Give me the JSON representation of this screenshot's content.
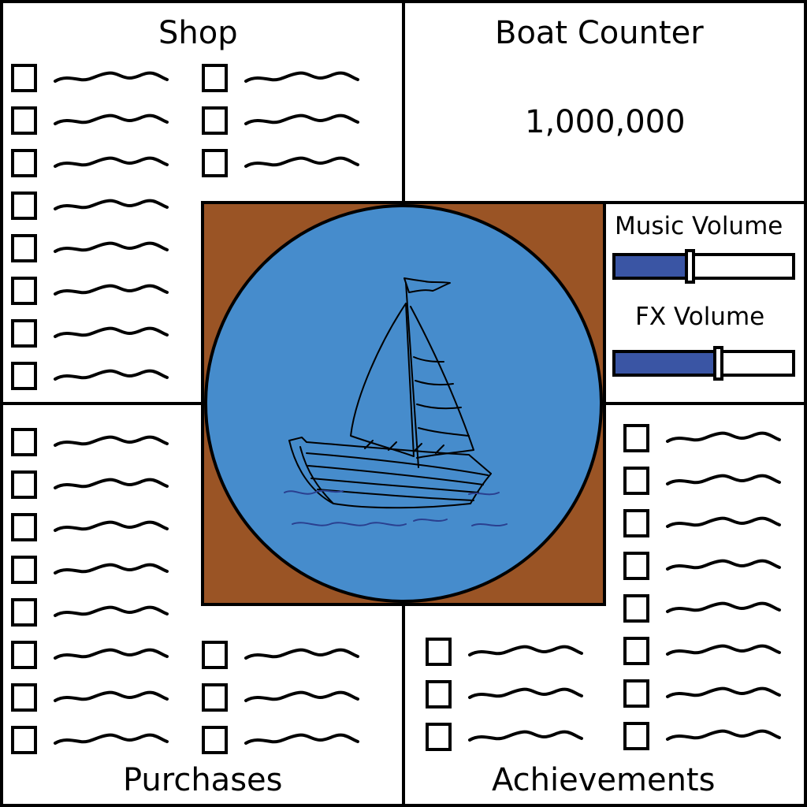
{
  "shop": {
    "title": "Shop",
    "item_count": 11
  },
  "counter": {
    "title": "Boat Counter",
    "value": "1,000,000"
  },
  "volume": {
    "music_label": "Music Volume",
    "music_level": 0.42,
    "fx_label": "FX Volume",
    "fx_level": 0.58
  },
  "purchases": {
    "title": "Purchases",
    "item_count": 11
  },
  "achievements": {
    "title": "Achievements",
    "item_count": 11
  },
  "boat_icon": "sailboat-icon",
  "colors": {
    "wood_frame": "#9a5425",
    "water_circle": "#468ccc",
    "slider_fill": "#3a55a4",
    "outline": "#000000"
  }
}
